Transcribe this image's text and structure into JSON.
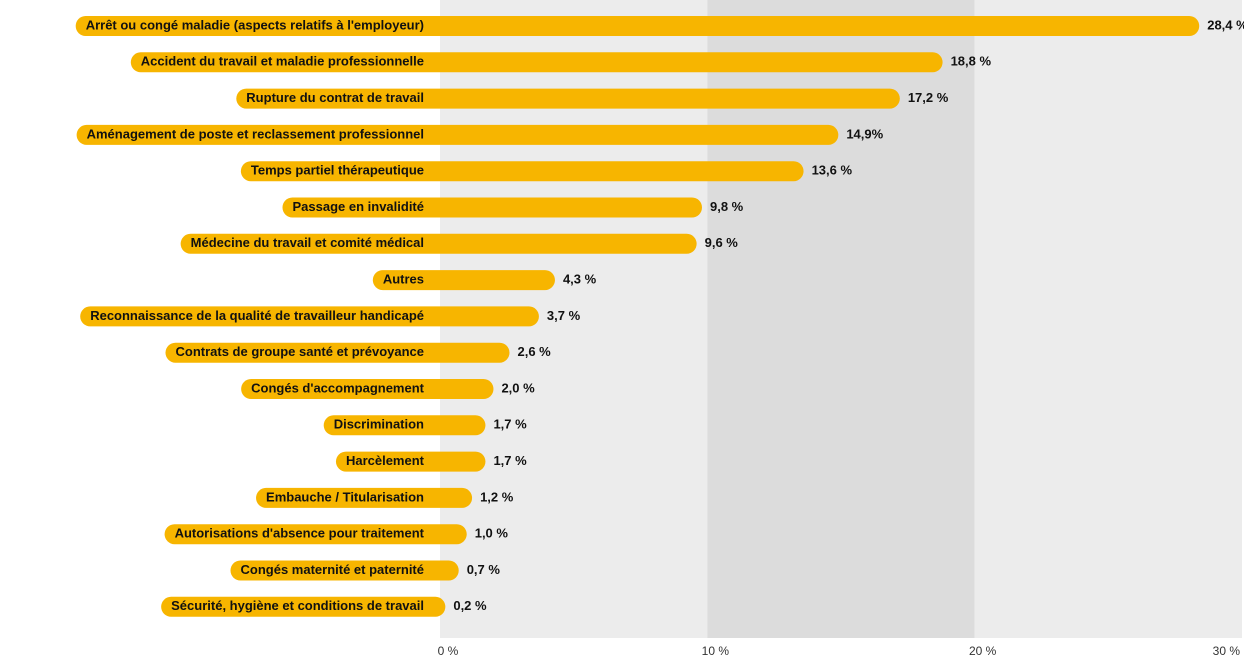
{
  "chart_data": {
    "type": "bar",
    "orientation": "horizontal",
    "categories": [
      "Arrêt ou congé maladie (aspects relatifs à l'employeur)",
      "Accident du travail et maladie professionnelle",
      "Rupture du contrat de travail",
      "Aménagement de poste et reclassement professionnel",
      "Temps partiel thérapeutique",
      "Passage en invalidité",
      "Médecine du travail et comité médical",
      "Autres",
      "Reconnaissance de la qualité de travailleur handicapé",
      "Contrats de groupe santé et prévoyance",
      "Congés d'accompagnement",
      "Discrimination",
      "Harcèlement",
      "Embauche / Titularisation",
      "Autorisations d'absence pour traitement",
      "Congés maternité et paternité",
      "Sécurité, hygiène et conditions de travail"
    ],
    "values": [
      28.4,
      18.8,
      17.2,
      14.9,
      13.6,
      9.8,
      9.6,
      4.3,
      3.7,
      2.6,
      2.0,
      1.7,
      1.7,
      1.2,
      1.0,
      0.7,
      0.2
    ],
    "value_labels": [
      "28,4 %",
      "18,8 %",
      "17,2 %",
      "14,9%",
      "13,6 %",
      "9,8 %",
      "9,6 %",
      "4,3 %",
      "3,7 %",
      "2,6 %",
      "2,0 %",
      "1,7 %",
      "1,7 %",
      "1,2 %",
      "1,0 %",
      "0,7 %",
      "0,2 %"
    ],
    "color": "#f7b500",
    "xlim": [
      0,
      30
    ],
    "xticks": [
      {
        "value": 0,
        "label": "0 %"
      },
      {
        "value": 10,
        "label": "10 %"
      },
      {
        "value": 20,
        "label": "20 %"
      },
      {
        "value": 30,
        "label": "30 %"
      }
    ],
    "band_colors": [
      "#ececec",
      "#dcdcdc",
      "#ececec"
    ]
  }
}
